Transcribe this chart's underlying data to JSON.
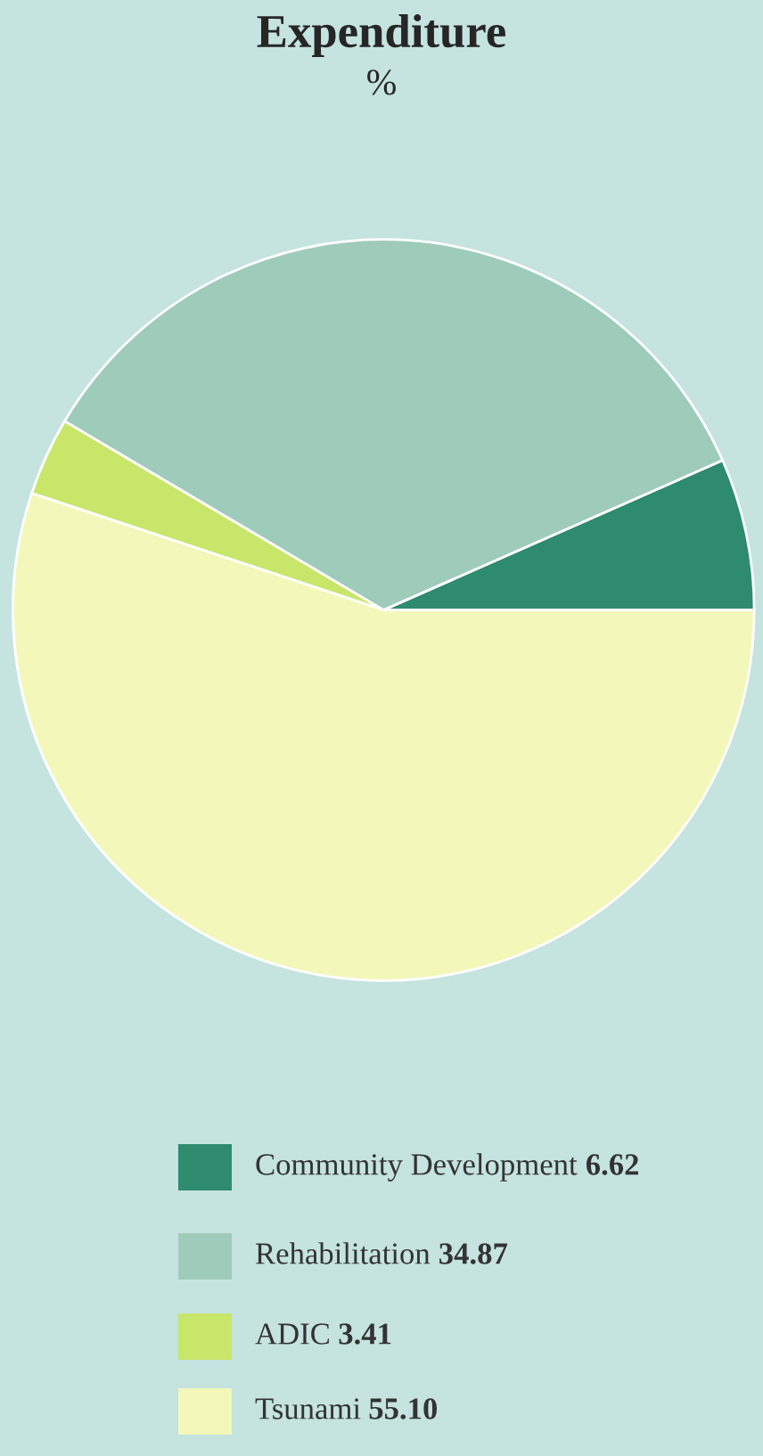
{
  "chart_data": {
    "type": "pie",
    "title": "Expenditure",
    "subtitle": "%",
    "categories": [
      "Community Development",
      "Rehabilitation",
      "ADIC",
      "Tsunami"
    ],
    "values": [
      6.62,
      34.87,
      3.41,
      55.1
    ],
    "colors": [
      "#2e8b6e",
      "#9fcbbb",
      "#c8e66a",
      "#f3f7b9"
    ],
    "value_labels": [
      "6.62",
      "34.87",
      "3.41",
      "55.10"
    ],
    "legend": "bottom"
  }
}
